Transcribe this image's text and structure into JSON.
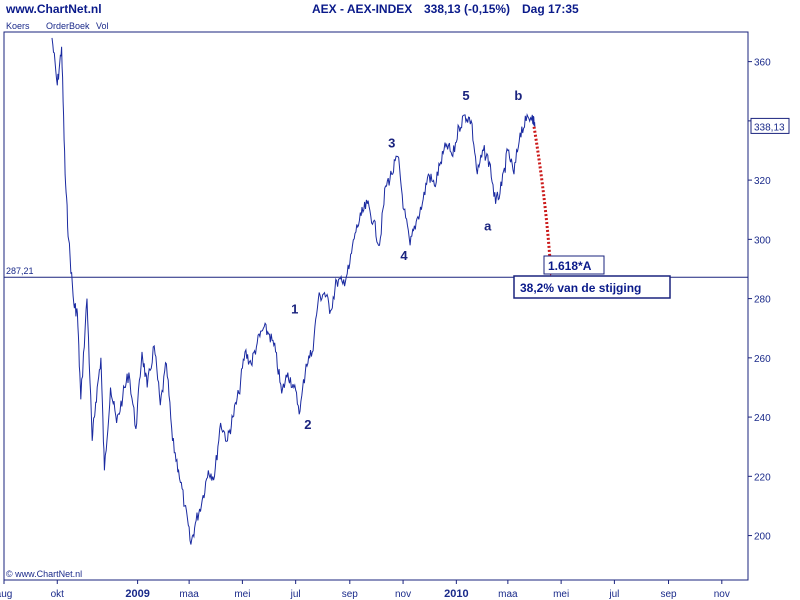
{
  "header": {
    "site": "www.ChartNet.nl",
    "title": "AEX - AEX-INDEX",
    "quote": "338,13 (-0,15%)",
    "period": "Dag 17:35"
  },
  "tabs": [
    "Koers",
    "OrderBoek",
    "Vol"
  ],
  "footer_watermark": "© www.ChartNet.nl",
  "price_tag": "338,13",
  "horizontal_line_label": "287,21",
  "annotations": {
    "fib_box": "1.618*A",
    "retrace_box": "38,2% van de stijging"
  },
  "colors": {
    "price": "#1a2aa0",
    "arrow": "#cc1a1a",
    "text": "#0a1a8a",
    "frame": "#1a237e"
  },
  "chart_data": {
    "type": "line",
    "title": "AEX - AEX-INDEX",
    "xlabel": "",
    "ylabel": "",
    "ylim": [
      185,
      370
    ],
    "x_range": [
      "2008-08-01",
      "2010-12-01"
    ],
    "y_ticks": [
      200,
      220,
      240,
      260,
      280,
      300,
      320,
      340,
      360
    ],
    "y_tick_labels": [
      "200",
      "220",
      "240",
      "260",
      "280",
      "300",
      "320",
      "",
      "360"
    ],
    "x_tick_labels": [
      {
        "date": "2008-08-01",
        "label": "aug",
        "bold": false
      },
      {
        "date": "2008-10-01",
        "label": "okt",
        "bold": false
      },
      {
        "date": "2009-01-01",
        "label": "2009",
        "bold": true
      },
      {
        "date": "2009-03-01",
        "label": "maa",
        "bold": false
      },
      {
        "date": "2009-05-01",
        "label": "mei",
        "bold": false
      },
      {
        "date": "2009-07-01",
        "label": "jul",
        "bold": false
      },
      {
        "date": "2009-09-01",
        "label": "sep",
        "bold": false
      },
      {
        "date": "2009-11-01",
        "label": "nov",
        "bold": false
      },
      {
        "date": "2010-01-01",
        "label": "2010",
        "bold": true
      },
      {
        "date": "2010-03-01",
        "label": "maa",
        "bold": false
      },
      {
        "date": "2010-05-01",
        "label": "mei",
        "bold": false
      },
      {
        "date": "2010-07-01",
        "label": "jul",
        "bold": false
      },
      {
        "date": "2010-09-01",
        "label": "sep",
        "bold": false
      },
      {
        "date": "2010-11-01",
        "label": "nov",
        "bold": false
      }
    ],
    "grid": false,
    "series": [
      {
        "x": [
          "2008-09-25",
          "2008-10-01",
          "2008-10-06",
          "2008-10-10",
          "2008-10-14",
          "2008-10-20",
          "2008-10-24",
          "2008-10-28",
          "2008-11-04",
          "2008-11-10",
          "2008-11-14",
          "2008-11-20",
          "2008-11-24",
          "2008-12-01",
          "2008-12-08",
          "2008-12-15",
          "2008-12-22",
          "2008-12-30",
          "2009-01-06",
          "2009-01-12",
          "2009-01-20",
          "2009-01-27",
          "2009-02-03",
          "2009-02-10",
          "2009-02-17",
          "2009-02-24",
          "2009-03-03",
          "2009-03-09",
          "2009-03-16",
          "2009-03-23",
          "2009-03-30",
          "2009-04-06",
          "2009-04-14",
          "2009-04-20",
          "2009-04-27",
          "2009-05-04",
          "2009-05-11",
          "2009-05-18",
          "2009-05-25",
          "2009-06-01",
          "2009-06-08",
          "2009-06-15",
          "2009-06-22",
          "2009-06-29",
          "2009-07-06",
          "2009-07-13",
          "2009-07-20",
          "2009-07-27",
          "2009-08-03",
          "2009-08-10",
          "2009-08-17",
          "2009-08-24",
          "2009-08-31",
          "2009-09-07",
          "2009-09-14",
          "2009-09-21",
          "2009-09-28",
          "2009-10-05",
          "2009-10-12",
          "2009-10-19",
          "2009-10-26",
          "2009-11-02",
          "2009-11-09",
          "2009-11-16",
          "2009-11-23",
          "2009-11-30",
          "2009-12-07",
          "2009-12-14",
          "2009-12-21",
          "2009-12-28",
          "2010-01-04",
          "2010-01-11",
          "2010-01-18",
          "2010-01-25",
          "2010-02-01",
          "2010-02-08",
          "2010-02-15",
          "2010-02-22",
          "2010-03-01",
          "2010-03-08",
          "2010-03-15",
          "2010-03-22",
          "2010-03-29",
          "2010-04-01"
        ],
        "values": [
          368,
          352,
          365,
          322,
          300,
          278,
          275,
          246,
          280,
          232,
          245,
          260,
          222,
          250,
          238,
          247,
          255,
          236,
          262,
          250,
          264,
          244,
          258,
          232,
          222,
          210,
          197,
          205,
          212,
          222,
          220,
          238,
          232,
          240,
          248,
          262,
          258,
          265,
          270,
          268,
          262,
          248,
          255,
          250,
          242,
          258,
          262,
          280,
          282,
          276,
          286,
          285,
          290,
          302,
          308,
          312,
          306,
          298,
          318,
          322,
          328,
          310,
          298,
          306,
          312,
          322,
          318,
          326,
          332,
          328,
          338,
          342,
          340,
          322,
          330,
          326,
          312,
          318,
          330,
          322,
          336,
          340,
          342,
          338
        ]
      }
    ],
    "wave_labels": [
      {
        "label": "1",
        "date": "2009-06-30",
        "value": 275
      },
      {
        "label": "2",
        "date": "2009-07-15",
        "value": 236
      },
      {
        "label": "3",
        "date": "2009-10-19",
        "value": 331
      },
      {
        "label": "4",
        "date": "2009-11-02",
        "value": 293
      },
      {
        "label": "5",
        "date": "2010-01-12",
        "value": 347
      },
      {
        "label": "a",
        "date": "2010-02-06",
        "value": 303
      },
      {
        "label": "b",
        "date": "2010-03-13",
        "value": 347
      }
    ],
    "horizontal_line": 287.21,
    "last_value": 338.13,
    "projection": {
      "from": {
        "date": "2010-03-31",
        "value": 338
      },
      "to": {
        "date": "2010-04-19",
        "value": 288
      }
    }
  }
}
